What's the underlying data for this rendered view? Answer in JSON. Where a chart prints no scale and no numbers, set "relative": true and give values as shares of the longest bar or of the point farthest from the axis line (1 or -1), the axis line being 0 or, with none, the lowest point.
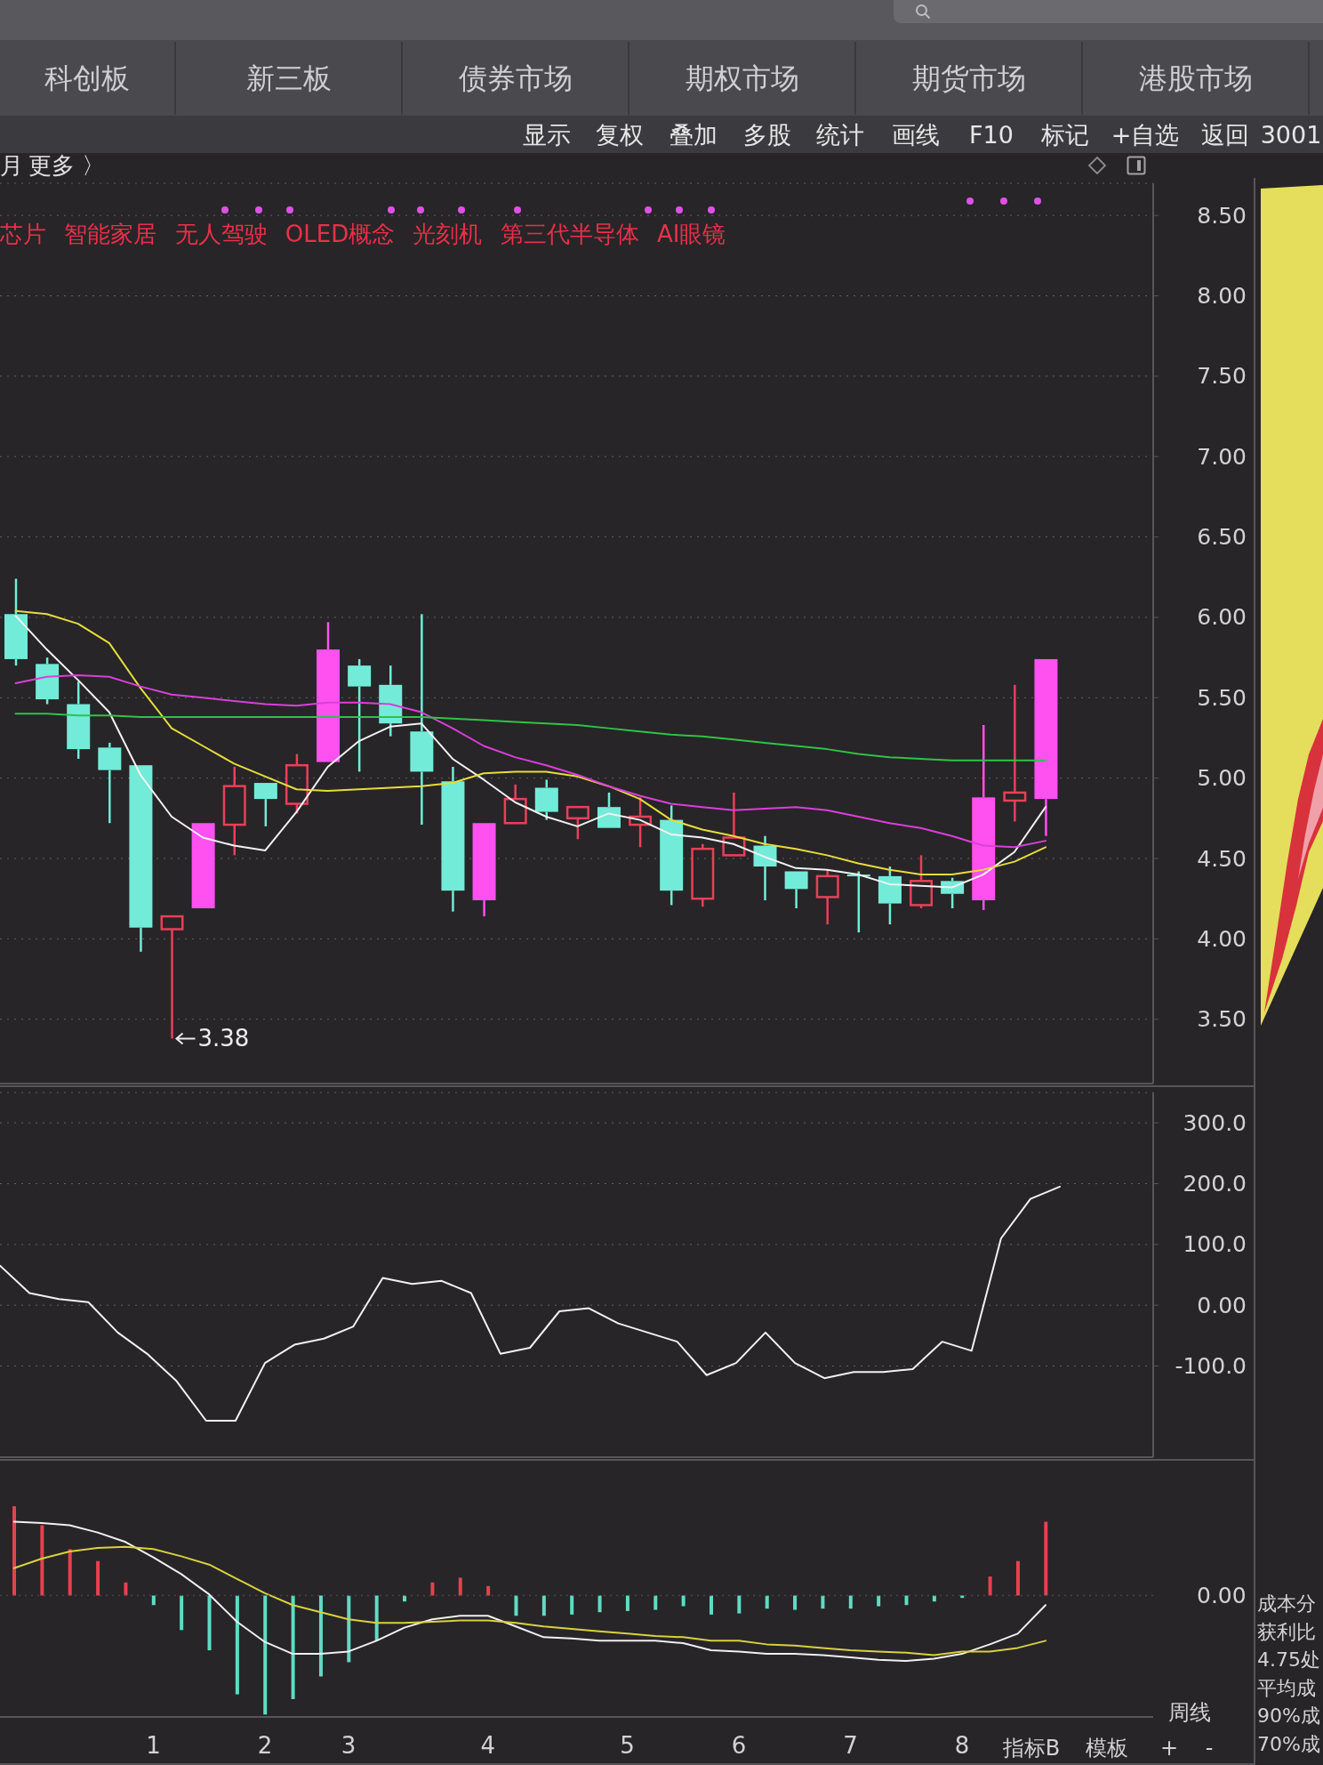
{
  "chart_data": [
    {
      "type": "other",
      "annotations": [
        "科创板",
        "新三板",
        "债券市场",
        "期权市场",
        "期货市场",
        "港股市场",
        "显示",
        "复权",
        "叠加",
        "多股",
        "统计",
        "画线",
        "F10",
        "标记",
        "+自选",
        "返回",
        "3001",
        "月",
        "更多 〉"
      ]
    },
    {
      "type": "candlestick",
      "subtitle": "芯片 智能家居 无人驾驶 OLED概念 光刻机 第三代半导体 AI眼镜",
      "categories": [
        null,
        null,
        null,
        null,
        null,
        null,
        null,
        null,
        null,
        null,
        null,
        null,
        null,
        null,
        null,
        null,
        null,
        null,
        null,
        null,
        null,
        null,
        null,
        null,
        null,
        null,
        null,
        null,
        null,
        null,
        null,
        null,
        null,
        null
      ],
      "ohlc": [
        [
          6.02,
          6.24,
          5.7,
          5.74
        ],
        [
          5.71,
          5.75,
          5.46,
          5.49
        ],
        [
          5.46,
          5.6,
          5.12,
          5.18
        ],
        [
          5.19,
          5.22,
          4.72,
          5.05
        ],
        [
          5.08,
          5.08,
          3.92,
          4.07
        ],
        [
          4.06,
          4.14,
          3.38,
          4.14
        ],
        [
          4.19,
          4.72,
          4.19,
          4.72
        ],
        [
          4.71,
          5.07,
          4.52,
          4.95
        ],
        [
          4.97,
          4.97,
          4.7,
          4.87
        ],
        [
          4.84,
          5.15,
          4.78,
          5.08
        ],
        [
          5.1,
          5.97,
          5.1,
          5.8
        ],
        [
          5.7,
          5.74,
          5.04,
          5.57
        ],
        [
          5.58,
          5.7,
          5.26,
          5.34
        ],
        [
          5.29,
          6.02,
          4.71,
          5.04
        ],
        [
          4.98,
          5.07,
          4.17,
          4.3
        ],
        [
          4.24,
          4.72,
          4.14,
          4.72
        ],
        [
          4.72,
          4.96,
          4.72,
          4.87
        ],
        [
          4.94,
          4.99,
          4.74,
          4.79
        ],
        [
          4.75,
          4.82,
          4.62,
          4.82
        ],
        [
          4.82,
          4.91,
          4.69,
          4.69
        ],
        [
          4.71,
          4.88,
          4.57,
          4.76
        ],
        [
          4.74,
          4.83,
          4.21,
          4.3
        ],
        [
          4.25,
          4.59,
          4.2,
          4.56
        ],
        [
          4.52,
          4.91,
          4.52,
          4.63
        ],
        [
          4.58,
          4.64,
          4.24,
          4.45
        ],
        [
          4.42,
          4.42,
          4.19,
          4.31
        ],
        [
          4.26,
          4.43,
          4.09,
          4.39
        ],
        [
          4.4,
          4.42,
          4.04,
          4.39
        ],
        [
          4.39,
          4.45,
          4.09,
          4.22
        ],
        [
          4.21,
          4.52,
          4.19,
          4.36
        ],
        [
          4.36,
          4.38,
          4.19,
          4.28
        ],
        [
          4.24,
          5.33,
          4.18,
          4.88
        ],
        [
          4.86,
          5.58,
          4.73,
          4.91
        ],
        [
          4.87,
          5.74,
          4.64,
          5.74
        ]
      ],
      "colors": [
        "#72ecd8",
        "#72ecd8",
        "#72ecd8",
        "#72ecd8",
        "#72ecd8",
        "#e8405a",
        "#ff50f0",
        "#e8405a",
        "#72ecd8",
        "#e8405a",
        "#ff50f0",
        "#72ecd8",
        "#72ecd8",
        "#72ecd8",
        "#72ecd8",
        "#ff50f0",
        "#e8405a",
        "#72ecd8",
        "#e8405a",
        "#72ecd8",
        "#e8405a",
        "#72ecd8",
        "#e8405a",
        "#e8405a",
        "#72ecd8",
        "#72ecd8",
        "#e8405a",
        "#72ecd8",
        "#72ecd8",
        "#e8405a",
        "#72ecd8",
        "#ff50f0",
        "#e8405a",
        "#ff50f0"
      ],
      "color": "#e8405a",
      "series": [
        {
          "type": "line",
          "color": "#f2f2f2",
          "values": [
            6.01,
            5.8,
            5.61,
            5.41,
            5.02,
            4.76,
            4.63,
            4.58,
            4.55,
            4.79,
            5.07,
            5.23,
            5.32,
            5.34,
            5.12,
            4.99,
            4.85,
            4.76,
            4.7,
            4.78,
            4.74,
            4.65,
            4.63,
            4.59,
            4.51,
            4.44,
            4.43,
            4.4,
            4.34,
            4.33,
            4.32,
            4.4,
            4.54,
            4.82
          ]
        },
        {
          "type": "line",
          "color": "#e6dc3c",
          "values": [
            6.04,
            6.02,
            5.96,
            5.84,
            5.56,
            5.31,
            5.2,
            5.09,
            5.01,
            4.93,
            4.92,
            4.93,
            4.94,
            4.95,
            4.97,
            5.03,
            5.04,
            5.04,
            5.01,
            4.95,
            4.87,
            4.74,
            4.68,
            4.64,
            4.59,
            4.56,
            4.52,
            4.47,
            4.43,
            4.4,
            4.4,
            4.43,
            4.48,
            4.57
          ]
        },
        {
          "type": "line",
          "color": "#d840d8",
          "values": [
            5.59,
            5.63,
            5.64,
            5.63,
            5.57,
            5.52,
            5.5,
            5.48,
            5.46,
            5.45,
            5.47,
            5.47,
            5.46,
            5.41,
            5.31,
            5.2,
            5.13,
            5.08,
            5.02,
            4.95,
            4.89,
            4.84,
            4.82,
            4.8,
            4.81,
            4.82,
            4.8,
            4.76,
            4.72,
            4.69,
            4.64,
            4.58,
            4.57,
            4.61
          ]
        },
        {
          "type": "line",
          "color": "#2fc24a",
          "values": [
            5.4,
            5.4,
            5.39,
            5.39,
            5.38,
            5.38,
            5.38,
            5.38,
            5.38,
            5.38,
            5.38,
            5.38,
            5.38,
            5.38,
            5.37,
            5.36,
            5.35,
            5.34,
            5.33,
            5.31,
            5.29,
            5.27,
            5.26,
            5.24,
            5.22,
            5.2,
            5.18,
            5.15,
            5.13,
            5.12,
            5.11,
            5.11,
            5.11,
            5.11
          ]
        }
      ],
      "ylim": [
        3.1,
        8.7
      ],
      "yticks": [
        {
          "value": 3.5,
          "label": "3.50"
        },
        {
          "value": 4,
          "label": "4.00"
        },
        {
          "value": 4.5,
          "label": "4.50"
        },
        {
          "value": 5,
          "label": "5.00"
        },
        {
          "value": 5.5,
          "label": "5.50"
        },
        {
          "value": 6,
          "label": "6.00"
        },
        {
          "value": 6.5,
          "label": "6.50"
        },
        {
          "value": 7,
          "label": "7.00"
        },
        {
          "value": 7.5,
          "label": "7.50"
        },
        {
          "value": 8,
          "label": "8.00"
        },
        {
          "value": 8.5,
          "label": "8.50"
        }
      ],
      "grid": "y",
      "tick_labels": "y",
      "annotations": [
        "3.38"
      ]
    },
    {
      "type": "line",
      "categories": [
        null,
        null,
        null,
        null,
        null,
        null,
        null,
        null,
        null,
        null,
        null,
        null,
        null,
        null,
        null,
        null,
        null,
        null,
        null,
        null,
        null,
        null,
        null,
        null,
        null,
        null,
        null,
        null,
        null,
        null,
        null,
        null,
        null,
        null,
        null,
        null,
        null
      ],
      "values": [
        65,
        20,
        10,
        5,
        -45,
        -80,
        -125,
        -190,
        -190,
        -95,
        -65,
        -55,
        -35,
        45,
        35,
        40,
        20,
        -80,
        -70,
        -10,
        -5,
        -30,
        -45,
        -60,
        -115,
        -95,
        -45,
        -95,
        -120,
        -110,
        -110,
        -105,
        -60,
        -75,
        110,
        175,
        195
      ],
      "color": "#f2f2f2",
      "ylim": [
        -250,
        350
      ],
      "yticks": [
        {
          "value": -100,
          "label": "-100.0"
        },
        {
          "value": 0,
          "label": "0.00"
        },
        {
          "value": 100,
          "label": "100.0"
        },
        {
          "value": 200,
          "label": "200.0"
        },
        {
          "value": 300,
          "label": "300.0"
        }
      ],
      "grid": "y",
      "tick_labels": "y"
    },
    {
      "type": "bar",
      "relative": true,
      "categories": [
        null,
        null,
        null,
        null,
        null,
        "1",
        null,
        null,
        null,
        "2",
        null,
        null,
        "3",
        null,
        null,
        null,
        null,
        "4",
        null,
        null,
        null,
        null,
        "5",
        null,
        null,
        null,
        "6",
        null,
        null,
        null,
        "7",
        null,
        null,
        null,
        "8",
        null,
        null,
        null
      ],
      "series": [
        {
          "type": "bar",
          "colors": [
            "#e8404f",
            "#e8404f",
            "#e8404f",
            "#e8404f",
            "#e8404f",
            "#5fdcc4",
            "#5fdcc4",
            "#5fdcc4",
            "#5fdcc4",
            "#5fdcc4",
            "#5fdcc4",
            "#5fdcc4",
            "#5fdcc4",
            "#5fdcc4",
            "#5fdcc4",
            "#e8404f",
            "#e8404f",
            "#e8404f",
            "#5fdcc4",
            "#5fdcc4",
            "#5fdcc4",
            "#5fdcc4",
            "#5fdcc4",
            "#5fdcc4",
            "#5fdcc4",
            "#5fdcc4",
            "#5fdcc4",
            "#5fdcc4",
            "#5fdcc4",
            "#5fdcc4",
            "#5fdcc4",
            "#5fdcc4",
            "#5fdcc4",
            "#5fdcc4",
            "#5fdcc4",
            "#e8404f",
            "#e8404f",
            "#e8404f"
          ],
          "values": [
            0.75,
            0.59,
            0.39,
            0.29,
            0.11,
            -0.08,
            -0.29,
            -0.46,
            -0.83,
            -1,
            -0.87,
            -0.68,
            -0.56,
            -0.38,
            -0.05,
            0.11,
            0.15,
            0.08,
            -0.17,
            -0.17,
            -0.16,
            -0.14,
            -0.13,
            -0.12,
            -0.09,
            -0.16,
            -0.15,
            -0.11,
            -0.12,
            -0.11,
            -0.11,
            -0.09,
            -0.08,
            -0.05,
            -0.02,
            0.16,
            0.29,
            0.62
          ]
        },
        {
          "type": "line",
          "color": "#f0f0f0",
          "values": [
            0.62,
            0.61,
            0.59,
            0.53,
            0.45,
            0.32,
            0.18,
            0.01,
            -0.22,
            -0.39,
            -0.49,
            -0.49,
            -0.47,
            -0.38,
            -0.27,
            -0.2,
            -0.17,
            -0.17,
            -0.26,
            -0.35,
            -0.36,
            -0.38,
            -0.38,
            -0.38,
            -0.4,
            -0.46,
            -0.47,
            -0.49,
            -0.49,
            -0.5,
            -0.52,
            -0.54,
            -0.55,
            -0.53,
            -0.49,
            -0.41,
            -0.32,
            -0.08
          ]
        },
        {
          "type": "line",
          "color": "#d8d040",
          "values": [
            0.23,
            0.31,
            0.37,
            0.4,
            0.41,
            0.39,
            0.33,
            0.26,
            0.14,
            0.02,
            -0.08,
            -0.14,
            -0.2,
            -0.23,
            -0.23,
            -0.22,
            -0.21,
            -0.21,
            -0.23,
            -0.26,
            -0.28,
            -0.3,
            -0.32,
            -0.34,
            -0.35,
            -0.38,
            -0.38,
            -0.41,
            -0.42,
            -0.44,
            -0.46,
            -0.47,
            -0.48,
            -0.5,
            -0.47,
            -0.47,
            -0.44,
            -0.38
          ]
        }
      ],
      "ref_lines": [
        {
          "axis": "y",
          "value": 0,
          "label": "0.00",
          "color": "#47464b",
          "line_style": "dotted"
        }
      ],
      "tick_labels": "x",
      "annotations": [
        "周线",
        "指标B",
        "模板",
        "+",
        "-"
      ]
    },
    {
      "type": "other",
      "annotations": [
        "成本分",
        "获利比",
        "4.75处",
        "平均成",
        "90%成",
        "70%成"
      ]
    }
  ]
}
